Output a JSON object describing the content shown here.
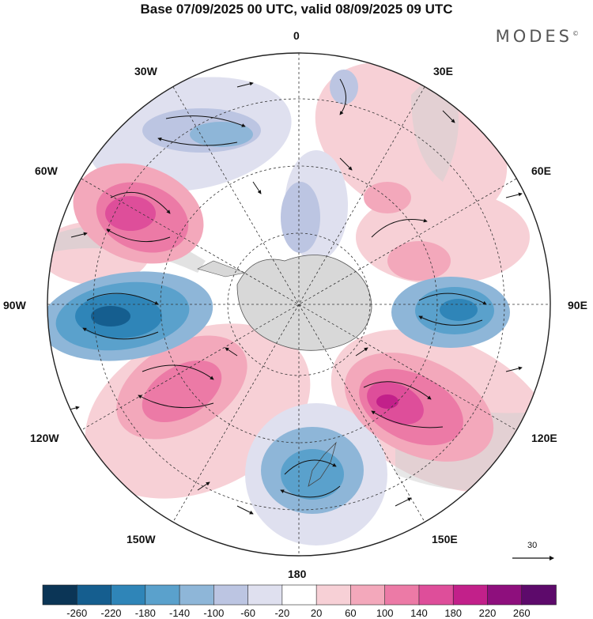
{
  "title": "Base 07/09/2025 00 UTC, valid 08/09/2025 09 UTC",
  "brand": "MODES",
  "brand_mark": "©",
  "map": {
    "projection": "south polar stereographic",
    "longitude_labels": {
      "top": "0",
      "top_right": "30E",
      "upper_right": "60E",
      "right": "90E",
      "lower_right": "120E",
      "bottom_right": "150E",
      "bottom": "180",
      "bottom_left": "150W",
      "lower_left": "120W",
      "left": "90W",
      "upper_left": "60W",
      "top_left": "30W"
    },
    "wind_reference": "30"
  },
  "legend": {
    "ticks": [
      "-260",
      "-220",
      "-180",
      "-140",
      "-100",
      "-60",
      "-20",
      "20",
      "60",
      "100",
      "140",
      "180",
      "220",
      "260"
    ],
    "colors": [
      "#0b3556",
      "#155e8f",
      "#2f85b8",
      "#5aa1cc",
      "#8eb6d8",
      "#bcc5e2",
      "#dfe0ef",
      "#ffffff",
      "#f7d0d6",
      "#f3a8bb",
      "#ec7aa6",
      "#de4e9a",
      "#c2208a",
      "#8e0f7d",
      "#5d0a6b"
    ]
  }
}
